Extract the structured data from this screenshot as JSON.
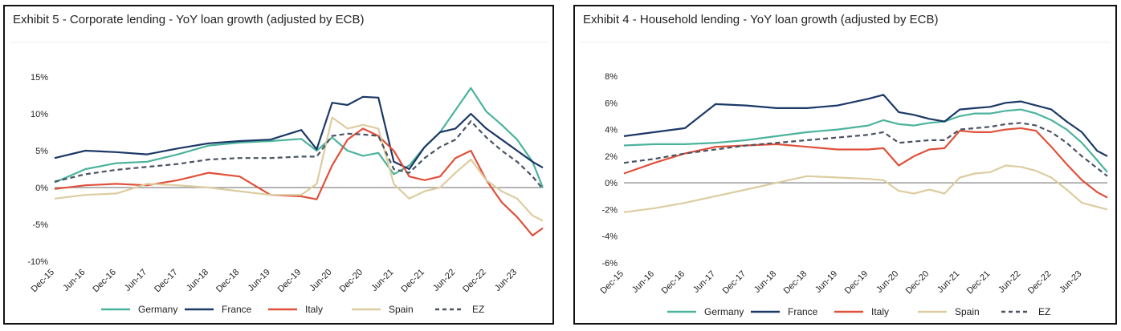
{
  "colors": {
    "Germany": "#4bb39c",
    "France": "#1b3866",
    "Italy": "#e0503a",
    "Spain": "#ddcca0",
    "EZ": "#4a5363"
  },
  "x_labels": [
    "Dec-15",
    "Jun-16",
    "Dec-16",
    "Jun-17",
    "Dec-17",
    "Jun-18",
    "Dec-18",
    "Jun-19",
    "Dec-19",
    "Jun-20",
    "Dec-20",
    "Jun-21",
    "Dec-21",
    "Jun-22",
    "Dec-22",
    "Jun-23"
  ],
  "chart_data": [
    {
      "title": "Exhibit 5 - Corporate lending - YoY loan growth (adjusted by ECB)",
      "type": "line",
      "y_format": "percent",
      "ylim": [
        -10,
        15
      ],
      "yticks": [
        15,
        10,
        5,
        0,
        -5,
        -10
      ],
      "x": [
        "Dec-15",
        "Jun-16",
        "Dec-16",
        "Jun-17",
        "Dec-17",
        "Jun-18",
        "Dec-18",
        "Jun-19",
        "Dec-19",
        "Mar-20",
        "Jun-20",
        "Sep-20",
        "Dec-20",
        "Mar-21",
        "Jun-21",
        "Sep-21",
        "Dec-21",
        "Mar-22",
        "Jun-22",
        "Sep-22",
        "Dec-22",
        "Mar-23",
        "Jun-23",
        "Sep-23",
        "Nov-23"
      ],
      "series": [
        {
          "name": "Germany",
          "values": [
            0.7,
            2.5,
            3.3,
            3.5,
            4.5,
            5.7,
            6.1,
            6.3,
            6.6,
            5.0,
            6.8,
            5.0,
            4.3,
            4.7,
            1.8,
            3.0,
            5.5,
            7.5,
            10.5,
            13.5,
            10.3,
            8.5,
            6.5,
            3.5,
            0.0
          ]
        },
        {
          "name": "France",
          "values": [
            4.0,
            5.0,
            4.8,
            4.5,
            5.3,
            6.0,
            6.3,
            6.5,
            7.8,
            5.2,
            11.5,
            11.2,
            12.3,
            12.2,
            3.5,
            2.5,
            5.5,
            7.5,
            8.0,
            10.0,
            8.0,
            6.5,
            5.0,
            3.5,
            2.7
          ]
        },
        {
          "name": "Italy",
          "values": [
            -0.2,
            0.3,
            0.5,
            0.3,
            1.0,
            2.0,
            1.5,
            -1.0,
            -1.2,
            -1.6,
            3.0,
            6.5,
            8.0,
            7.0,
            5.0,
            1.5,
            1.0,
            1.5,
            4.0,
            5.0,
            1.0,
            -2.0,
            -4.0,
            -6.5,
            -5.5
          ]
        },
        {
          "name": "Spain",
          "values": [
            -1.5,
            -1.0,
            -0.8,
            0.5,
            0.3,
            0.0,
            -0.5,
            -1.0,
            -1.0,
            0.5,
            9.5,
            8.0,
            8.5,
            8.0,
            0.5,
            -1.5,
            -0.5,
            0.0,
            2.0,
            3.8,
            1.0,
            -0.5,
            -1.5,
            -3.8,
            -4.5
          ]
        },
        {
          "name": "EZ",
          "values": [
            0.8,
            1.8,
            2.4,
            2.8,
            3.2,
            3.8,
            4.0,
            4.0,
            4.2,
            4.2,
            7.0,
            7.3,
            7.2,
            7.0,
            2.5,
            2.0,
            4.0,
            5.5,
            6.5,
            9.0,
            6.8,
            5.0,
            3.5,
            1.5,
            -0.2
          ]
        }
      ]
    },
    {
      "title": "Exhibit 4 - Household lending - YoY loan growth (adjusted by ECB)",
      "type": "line",
      "y_format": "percent",
      "ylim": [
        -6,
        8
      ],
      "yticks": [
        8,
        6,
        4,
        2,
        0,
        -2,
        -4,
        -6
      ],
      "x": [
        "Dec-15",
        "Jun-16",
        "Dec-16",
        "Jun-17",
        "Dec-17",
        "Jun-18",
        "Dec-18",
        "Jun-19",
        "Dec-19",
        "Mar-20",
        "Jun-20",
        "Sep-20",
        "Dec-20",
        "Mar-21",
        "Jun-21",
        "Sep-21",
        "Dec-21",
        "Mar-22",
        "Jun-22",
        "Sep-22",
        "Dec-22",
        "Mar-23",
        "Jun-23",
        "Sep-23",
        "Nov-23"
      ],
      "series": [
        {
          "name": "Germany",
          "values": [
            2.8,
            2.9,
            2.9,
            3.0,
            3.2,
            3.5,
            3.8,
            4.0,
            4.3,
            4.7,
            4.4,
            4.3,
            4.5,
            4.6,
            5.0,
            5.2,
            5.2,
            5.4,
            5.5,
            5.2,
            4.7,
            4.0,
            3.0,
            1.7,
            0.8
          ]
        },
        {
          "name": "France",
          "values": [
            3.5,
            3.8,
            4.1,
            5.9,
            5.8,
            5.6,
            5.6,
            5.8,
            6.3,
            6.6,
            5.3,
            5.1,
            4.8,
            4.6,
            5.5,
            5.6,
            5.7,
            6.0,
            6.1,
            5.8,
            5.5,
            4.6,
            3.8,
            2.4,
            2.0
          ]
        },
        {
          "name": "Italy",
          "values": [
            0.7,
            1.5,
            2.2,
            2.7,
            2.8,
            2.9,
            2.7,
            2.5,
            2.5,
            2.6,
            1.3,
            2.0,
            2.5,
            2.6,
            3.9,
            3.8,
            3.8,
            4.0,
            4.1,
            3.9,
            2.7,
            1.4,
            0.2,
            -0.7,
            -1.1
          ]
        },
        {
          "name": "Spain",
          "values": [
            -2.2,
            -1.9,
            -1.5,
            -1.0,
            -0.5,
            0.0,
            0.5,
            0.4,
            0.3,
            0.2,
            -0.6,
            -0.8,
            -0.5,
            -0.8,
            0.4,
            0.7,
            0.8,
            1.3,
            1.2,
            0.9,
            0.4,
            -0.5,
            -1.5,
            -1.8,
            -2.0
          ]
        },
        {
          "name": "EZ",
          "values": [
            1.5,
            1.8,
            2.2,
            2.5,
            2.8,
            3.0,
            3.2,
            3.4,
            3.6,
            3.8,
            3.0,
            3.1,
            3.2,
            3.2,
            4.0,
            4.1,
            4.2,
            4.4,
            4.5,
            4.3,
            3.8,
            3.0,
            2.0,
            1.1,
            0.5
          ]
        }
      ]
    }
  ]
}
